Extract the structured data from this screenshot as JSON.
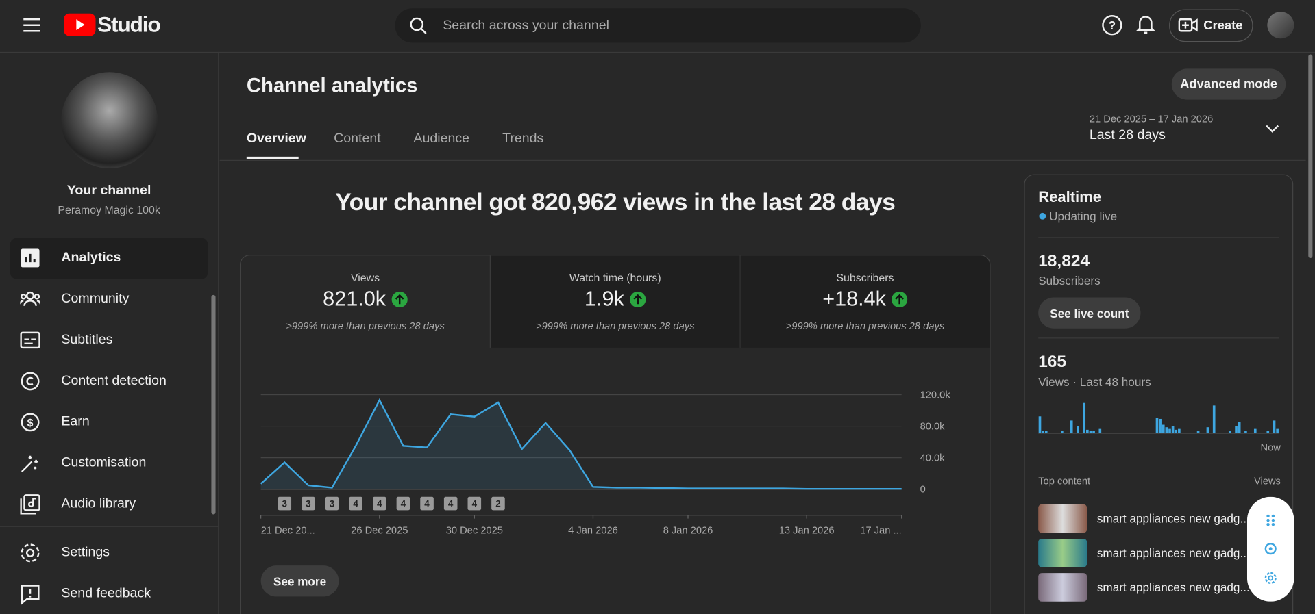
{
  "header": {
    "logo": "Studio",
    "search_placeholder": "Search across your channel",
    "create": "Create"
  },
  "sidebar": {
    "channel_title": "Your channel",
    "channel_name": "Peramoy Magic 100k",
    "nav": [
      "Analytics",
      "Community",
      "Subtitles",
      "Content detection",
      "Earn",
      "Customisation",
      "Audio library"
    ],
    "footer": [
      "Settings",
      "Send feedback"
    ]
  },
  "page": {
    "title": "Channel analytics",
    "advanced": "Advanced mode",
    "tabs": [
      "Overview",
      "Content",
      "Audience",
      "Trends"
    ],
    "date_range": "21 Dec 2025 – 17 Jan 2026",
    "period": "Last 28 days",
    "headline": "Your channel got 820,962 views in the last 28 days",
    "metrics": [
      {
        "label": "Views",
        "value": "821.0k",
        "change": ">999% more than previous 28 days"
      },
      {
        "label": "Watch time (hours)",
        "value": "1.9k",
        "change": ">999% more than previous 28 days"
      },
      {
        "label": "Subscribers",
        "value": "+18.4k",
        "change": ">999% more than previous 28 days"
      }
    ],
    "see_more": "See more"
  },
  "realtime": {
    "title": "Realtime",
    "status": "Updating live",
    "subscribers_value": "18,824",
    "subscribers_label": "Subscribers",
    "live_count_button": "See live count",
    "views_value": "165",
    "views_label": "Views · Last 48 hours",
    "now": "Now",
    "top_content": "Top content",
    "views_col": "Views",
    "items": [
      "smart appliances new gadg...",
      "smart appliances new gadg...",
      "smart appliances new gadg..."
    ]
  },
  "chart_data": [
    {
      "type": "line",
      "color": "#3ea6e0",
      "categories": [
        "21 Dec 20...",
        null,
        null,
        null,
        null,
        "26 Dec 2025",
        null,
        null,
        null,
        "30 Dec 2025",
        null,
        null,
        null,
        null,
        "4 Jan 2026",
        null,
        null,
        null,
        "8 Jan 2026",
        null,
        null,
        null,
        null,
        "13 Jan 2026",
        null,
        null,
        null,
        "17 Jan ..."
      ],
      "values": [
        7000,
        34000,
        5000,
        2000,
        55000,
        113000,
        55000,
        53000,
        95000,
        92000,
        110000,
        51000,
        84000,
        50000,
        3000,
        2000,
        2000,
        1500,
        1000,
        1000,
        1000,
        1000,
        1000,
        500,
        500,
        500,
        500,
        500
      ],
      "published_counts": [
        null,
        3,
        3,
        3,
        4,
        4,
        4,
        4,
        4,
        4,
        2,
        null,
        null,
        null,
        null,
        null,
        null,
        null,
        null,
        null,
        null,
        null,
        null,
        null,
        null,
        null,
        null,
        null
      ],
      "ylim": [
        0,
        120000
      ],
      "yticks": [
        0,
        {
          "value": 40000,
          "label": "40.0k"
        },
        {
          "value": 80000,
          "label": "80.0k"
        },
        {
          "value": 120000,
          "label": "120.0k"
        }
      ],
      "grid": true
    },
    {
      "type": "bar",
      "color": "#3ea6e0",
      "values": [
        20,
        3,
        3,
        0,
        0,
        0,
        0,
        3,
        0,
        0,
        15,
        0,
        8,
        0,
        36,
        4,
        3,
        3,
        0,
        5,
        0,
        0,
        0,
        0,
        0,
        0,
        0,
        0,
        0,
        0,
        0,
        0,
        0,
        0,
        0,
        0,
        0,
        18,
        17,
        10,
        7,
        5,
        8,
        4,
        5,
        0,
        0,
        0,
        0,
        0,
        3,
        0,
        0,
        7,
        0,
        33,
        0,
        0,
        0,
        0,
        3,
        0,
        8,
        13,
        0,
        3,
        0,
        0,
        5,
        0,
        0,
        0,
        3,
        0,
        15,
        5
      ]
    }
  ]
}
